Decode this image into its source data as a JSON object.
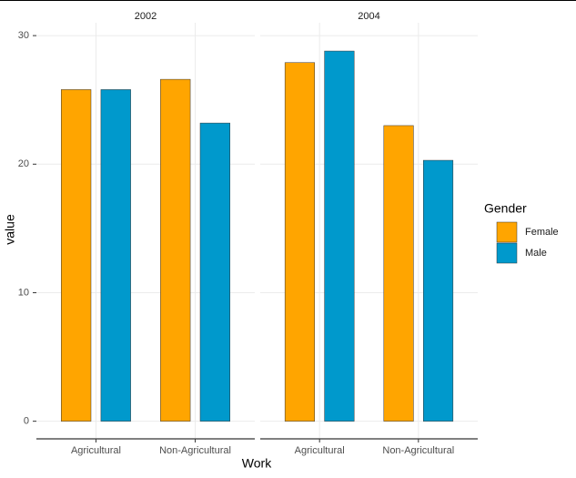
{
  "chart_data": {
    "type": "bar",
    "x_label": "Work",
    "y_label": "value",
    "legend_title": "Gender",
    "series": [
      {
        "name": "Female",
        "color": "#FFA500"
      },
      {
        "name": "Male",
        "color": "#0099CC"
      }
    ],
    "ylim": [
      -1.3,
      31
    ],
    "yticks": [
      0,
      10,
      20,
      30
    ],
    "grid": true,
    "facets": [
      {
        "title": "2002",
        "categories": [
          "Agricultural",
          "Non-Agricultural"
        ],
        "series": [
          {
            "values": [
              25.8,
              26.6
            ]
          },
          {
            "values": [
              25.8,
              23.2
            ]
          }
        ]
      },
      {
        "title": "2004",
        "categories": [
          "Agricultural",
          "Non-Agricultural"
        ],
        "series": [
          {
            "values": [
              27.9,
              23.0
            ]
          },
          {
            "values": [
              28.8,
              20.3
            ]
          }
        ]
      }
    ]
  }
}
